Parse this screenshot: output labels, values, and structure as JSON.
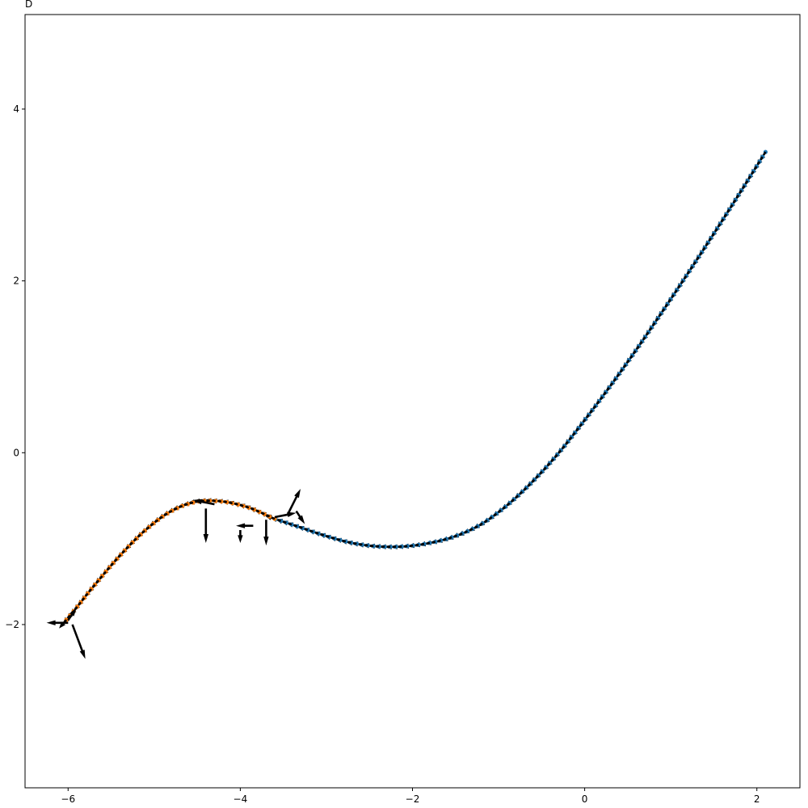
{
  "corner_label": "D",
  "chart_data": {
    "type": "quiver",
    "title": "",
    "xlabel": "",
    "ylabel": "",
    "xlim": [
      -6.5,
      2.5
    ],
    "ylim": [
      -3.9,
      5.1
    ],
    "xticks": [
      -6,
      -4,
      -2,
      0,
      2
    ],
    "yticks": [
      -2,
      0,
      2,
      4
    ],
    "grid": false,
    "colors": {
      "trajectory_blue": "#1f77b4",
      "trajectory_orange": "#ff7f0e",
      "arrows": "#000000"
    },
    "series": [
      {
        "color": "#1f77b4",
        "x": [
          2.1,
          1.8,
          1.5,
          1.2,
          0.9,
          0.6,
          0.3,
          0.0,
          -0.3,
          -0.6,
          -0.9,
          -1.2,
          -1.5,
          -1.8,
          -2.1,
          -2.4,
          -2.7,
          -3.0,
          -3.3,
          -3.6
        ],
        "y": [
          3.5,
          3.02,
          2.55,
          2.09,
          1.64,
          1.2,
          0.78,
          0.38,
          0.0,
          -0.33,
          -0.61,
          -0.83,
          -0.97,
          -1.05,
          -1.09,
          -1.09,
          -1.05,
          -0.97,
          -0.87,
          -0.77
        ]
      },
      {
        "color": "#ff7f0e",
        "x": [
          -3.6,
          -3.9,
          -4.2,
          -4.5,
          -4.8,
          -5.1,
          -5.4,
          -5.7,
          -5.9,
          -6.05
        ],
        "y": [
          -0.77,
          -0.64,
          -0.57,
          -0.57,
          -0.68,
          -0.9,
          -1.2,
          -1.55,
          -1.8,
          -1.98
        ]
      }
    ],
    "outlier_arrows": [
      {
        "x": -4.4,
        "y": -0.65,
        "u": 0.0,
        "v": -0.4
      },
      {
        "x": -4.3,
        "y": -0.6,
        "u": -0.25,
        "v": 0.05
      },
      {
        "x": -3.45,
        "y": -0.72,
        "u": 0.15,
        "v": 0.3
      },
      {
        "x": -3.35,
        "y": -0.68,
        "u": 0.1,
        "v": -0.15
      },
      {
        "x": -3.7,
        "y": -0.78,
        "u": 0.0,
        "v": -0.3
      },
      {
        "x": -3.85,
        "y": -0.85,
        "u": -0.2,
        "v": 0.0
      },
      {
        "x": -4.0,
        "y": -0.9,
        "u": 0.0,
        "v": -0.15
      },
      {
        "x": -3.6,
        "y": -0.75,
        "u": 0.25,
        "v": 0.05
      },
      {
        "x": -6.0,
        "y": -1.98,
        "u": -0.25,
        "v": 0.0
      },
      {
        "x": -5.95,
        "y": -2.0,
        "u": 0.15,
        "v": -0.4
      },
      {
        "x": -6.0,
        "y": -1.95,
        "u": 0.1,
        "v": 0.15
      }
    ]
  }
}
